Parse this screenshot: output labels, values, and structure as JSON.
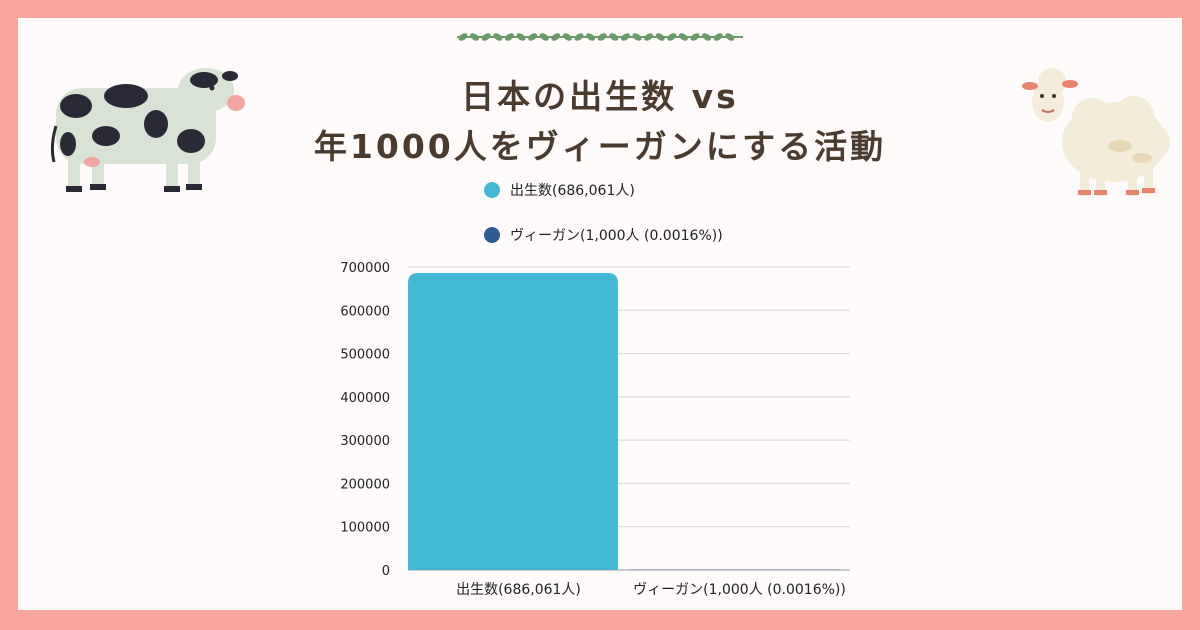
{
  "title": {
    "line1": "日本の出生数 vs",
    "line2": "年1000人をヴィーガンにする活動"
  },
  "colors": {
    "frame": "#f8a59c",
    "series_births": "#42b8d5",
    "series_vegan": "#2f5b94",
    "title": "#4a3b2e"
  },
  "icons": {
    "cow": "cow-illustration",
    "sheep": "sheep-illustration",
    "vine": "vine-divider"
  },
  "legend": [
    {
      "label": "出生数(686,061人)",
      "color": "#42b8d5"
    },
    {
      "label": "ヴィーガン(1,000人 (0.0016%))",
      "color": "#2f5b94"
    }
  ],
  "chart_data": {
    "type": "bar",
    "categories": [
      "出生数(686,061人)",
      "ヴィーガン(1,000人 (0.0016%))"
    ],
    "values": [
      686061,
      1000
    ],
    "colors": [
      "#42b8d5",
      "#2f5b94"
    ],
    "yticks": [
      0,
      100000,
      200000,
      300000,
      400000,
      500000,
      600000,
      700000
    ],
    "ylim": [
      0,
      700000
    ],
    "grid": true,
    "legend_position": "top"
  }
}
